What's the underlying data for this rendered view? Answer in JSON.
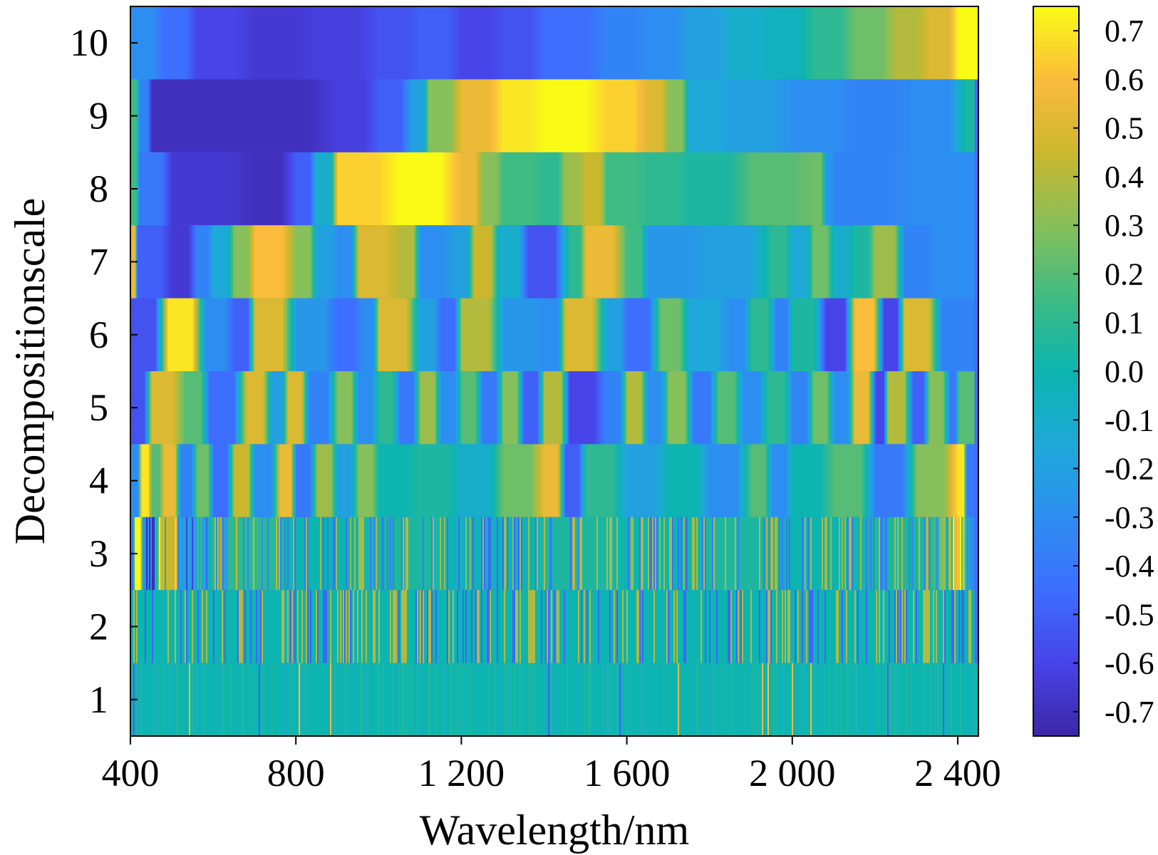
{
  "chart_data": {
    "type": "heatmap",
    "title": "",
    "xlabel": "Wavelength/nm",
    "ylabel": "Decompositionscale",
    "xlim": [
      400,
      2450
    ],
    "x_ticks": [
      400,
      800,
      1200,
      1600,
      2000,
      2400
    ],
    "x_tick_labels": [
      "400",
      "800",
      "1 200",
      "1 600",
      "2 000",
      "2 400"
    ],
    "y_ticks": [
      1,
      2,
      3,
      4,
      5,
      6,
      7,
      8,
      9,
      10
    ],
    "y_tick_labels": [
      "1",
      "2",
      "3",
      "4",
      "5",
      "6",
      "7",
      "8",
      "9",
      "10"
    ],
    "colorbar": {
      "range": [
        -0.75,
        0.75
      ],
      "colormap": "parula",
      "ticks": [
        0.7,
        0.6,
        0.5,
        0.4,
        0.3,
        0.2,
        0.1,
        0.0,
        -0.1,
        -0.2,
        -0.3,
        -0.4,
        -0.5,
        -0.6,
        -0.7
      ],
      "tick_labels": [
        "0.7",
        "0.6",
        "0.5",
        "0.4",
        "0.3",
        "0.2",
        "0.1",
        "0.0",
        "-0.1",
        "-0.2",
        "-0.3",
        "-0.4",
        "-0.5",
        "-0.6",
        "-0.7"
      ]
    },
    "rows": [
      {
        "scale": 10,
        "x_start": 400,
        "x_end": 2450,
        "segments": [
          [
            400,
            -0.3
          ],
          [
            480,
            -0.45
          ],
          [
            560,
            -0.6
          ],
          [
            700,
            -0.65
          ],
          [
            850,
            -0.62
          ],
          [
            1000,
            -0.55
          ],
          [
            1100,
            -0.5
          ],
          [
            1200,
            -0.6
          ],
          [
            1300,
            -0.55
          ],
          [
            1400,
            -0.45
          ],
          [
            1550,
            -0.35
          ],
          [
            1650,
            -0.3
          ],
          [
            1750,
            -0.2
          ],
          [
            1850,
            -0.1
          ],
          [
            1950,
            -0.05
          ],
          [
            2050,
            0.1
          ],
          [
            2150,
            0.25
          ],
          [
            2250,
            0.4
          ],
          [
            2330,
            0.5
          ],
          [
            2400,
            0.75
          ]
        ]
      },
      {
        "scale": 9,
        "x_start": 400,
        "x_end": 2440,
        "segments": [
          [
            400,
            0.15
          ],
          [
            420,
            -0.35
          ],
          [
            450,
            -0.7
          ],
          [
            700,
            -0.7
          ],
          [
            900,
            -0.62
          ],
          [
            1000,
            -0.5
          ],
          [
            1080,
            -0.2
          ],
          [
            1120,
            0.3
          ],
          [
            1200,
            0.55
          ],
          [
            1300,
            0.7
          ],
          [
            1400,
            0.75
          ],
          [
            1550,
            0.65
          ],
          [
            1650,
            0.5
          ],
          [
            1700,
            0.3
          ],
          [
            1750,
            -0.15
          ],
          [
            1850,
            -0.2
          ],
          [
            2000,
            -0.3
          ],
          [
            2150,
            -0.35
          ],
          [
            2300,
            -0.3
          ],
          [
            2420,
            0.05
          ]
        ]
      },
      {
        "scale": 8,
        "x_start": 400,
        "x_end": 2440,
        "segments": [
          [
            400,
            0.15
          ],
          [
            420,
            -0.4
          ],
          [
            500,
            -0.65
          ],
          [
            700,
            -0.7
          ],
          [
            800,
            -0.5
          ],
          [
            850,
            -0.1
          ],
          [
            900,
            0.65
          ],
          [
            1050,
            0.75
          ],
          [
            1200,
            0.55
          ],
          [
            1250,
            0.3
          ],
          [
            1300,
            0.15
          ],
          [
            1400,
            0.1
          ],
          [
            1450,
            0.35
          ],
          [
            1500,
            0.45
          ],
          [
            1550,
            0.15
          ],
          [
            1650,
            0.1
          ],
          [
            1750,
            0.05
          ],
          [
            1900,
            0.2
          ],
          [
            2050,
            0.25
          ],
          [
            2080,
            -0.25
          ],
          [
            2100,
            -0.35
          ],
          [
            2300,
            -0.3
          ]
        ]
      },
      {
        "scale": 7,
        "x_start": 400,
        "x_end": 2440,
        "segments": [
          [
            400,
            0.55
          ],
          [
            415,
            -0.5
          ],
          [
            500,
            -0.65
          ],
          [
            560,
            -0.35
          ],
          [
            600,
            -0.15
          ],
          [
            650,
            0.3
          ],
          [
            700,
            0.6
          ],
          [
            800,
            0.3
          ],
          [
            850,
            -0.2
          ],
          [
            900,
            -0.3
          ],
          [
            950,
            0.5
          ],
          [
            1050,
            0.4
          ],
          [
            1100,
            -0.3
          ],
          [
            1180,
            -0.2
          ],
          [
            1230,
            0.45
          ],
          [
            1290,
            -0.1
          ],
          [
            1360,
            -0.55
          ],
          [
            1460,
            0.1
          ],
          [
            1500,
            0.55
          ],
          [
            1600,
            0.15
          ],
          [
            1650,
            -0.25
          ],
          [
            1800,
            -0.2
          ],
          [
            1950,
            0.1
          ],
          [
            2000,
            -0.15
          ],
          [
            2050,
            0.25
          ],
          [
            2100,
            -0.1
          ],
          [
            2150,
            0.05
          ],
          [
            2200,
            0.35
          ],
          [
            2270,
            -0.35
          ],
          [
            2350,
            -0.3
          ]
        ]
      },
      {
        "scale": 6,
        "x_start": 400,
        "x_end": 2440,
        "segments": [
          [
            400,
            -0.55
          ],
          [
            490,
            0.7
          ],
          [
            580,
            -0.3
          ],
          [
            650,
            -0.5
          ],
          [
            700,
            0.5
          ],
          [
            800,
            -0.25
          ],
          [
            900,
            -0.45
          ],
          [
            960,
            -0.3
          ],
          [
            1000,
            0.5
          ],
          [
            1100,
            -0.2
          ],
          [
            1150,
            -0.45
          ],
          [
            1200,
            0.4
          ],
          [
            1300,
            -0.25
          ],
          [
            1400,
            -0.3
          ],
          [
            1450,
            0.5
          ],
          [
            1550,
            -0.2
          ],
          [
            1600,
            -0.45
          ],
          [
            1680,
            0.25
          ],
          [
            1750,
            -0.15
          ],
          [
            1850,
            -0.3
          ],
          [
            1900,
            0.1
          ],
          [
            1960,
            -0.35
          ],
          [
            2000,
            0.05
          ],
          [
            2080,
            -0.6
          ],
          [
            2150,
            0.6
          ],
          [
            2220,
            -0.6
          ],
          [
            2270,
            0.5
          ],
          [
            2360,
            -0.35
          ]
        ]
      },
      {
        "scale": 5,
        "x_start": 400,
        "x_end": 2440,
        "segments": [
          [
            400,
            -0.55
          ],
          [
            450,
            0.5
          ],
          [
            530,
            0.2
          ],
          [
            590,
            -0.45
          ],
          [
            680,
            0.5
          ],
          [
            740,
            -0.2
          ],
          [
            780,
            0.5
          ],
          [
            830,
            -0.35
          ],
          [
            900,
            0.3
          ],
          [
            950,
            -0.3
          ],
          [
            1000,
            0.1
          ],
          [
            1050,
            -0.4
          ],
          [
            1100,
            0.35
          ],
          [
            1150,
            -0.3
          ],
          [
            1200,
            0.2
          ],
          [
            1250,
            -0.4
          ],
          [
            1300,
            0.3
          ],
          [
            1350,
            -0.5
          ],
          [
            1400,
            0.4
          ],
          [
            1460,
            -0.6
          ],
          [
            1550,
            -0.35
          ],
          [
            1600,
            0.4
          ],
          [
            1650,
            -0.3
          ],
          [
            1700,
            0.3
          ],
          [
            1760,
            -0.4
          ],
          [
            1820,
            0.2
          ],
          [
            1880,
            -0.3
          ],
          [
            1940,
            0.1
          ],
          [
            2000,
            -0.35
          ],
          [
            2050,
            0.25
          ],
          [
            2100,
            -0.3
          ],
          [
            2150,
            0.55
          ],
          [
            2200,
            -0.6
          ],
          [
            2230,
            0.4
          ],
          [
            2290,
            -0.5
          ],
          [
            2330,
            0.3
          ],
          [
            2380,
            -0.4
          ],
          [
            2400,
            0.2
          ]
        ]
      },
      {
        "scale": 4,
        "x_start": 400,
        "x_end": 2440,
        "segments": [
          [
            400,
            -0.3
          ],
          [
            425,
            0.7
          ],
          [
            450,
            0.2
          ],
          [
            480,
            0.55
          ],
          [
            520,
            -0.35
          ],
          [
            560,
            0.25
          ],
          [
            600,
            -0.45
          ],
          [
            650,
            0.45
          ],
          [
            700,
            -0.3
          ],
          [
            760,
            0.55
          ],
          [
            800,
            -0.4
          ],
          [
            850,
            0.35
          ],
          [
            900,
            -0.2
          ],
          [
            950,
            0.3
          ],
          [
            1000,
            0.0
          ],
          [
            1100,
            0.05
          ],
          [
            1200,
            -0.1
          ],
          [
            1300,
            0.25
          ],
          [
            1400,
            0.55
          ],
          [
            1450,
            -0.5
          ],
          [
            1500,
            0.1
          ],
          [
            1600,
            -0.2
          ],
          [
            1700,
            0.0
          ],
          [
            1800,
            -0.3
          ],
          [
            1900,
            0.2
          ],
          [
            1950,
            -0.3
          ],
          [
            2000,
            0.0
          ],
          [
            2100,
            0.2
          ],
          [
            2200,
            -0.4
          ],
          [
            2300,
            0.3
          ],
          [
            2400,
            0.7
          ],
          [
            2420,
            -0.4
          ]
        ]
      },
      {
        "scale": 3,
        "x_start": 400,
        "x_end": 2440,
        "segments": [
          [
            400,
            0.0
          ],
          [
            410,
            0.75
          ],
          [
            430,
            -0.3
          ],
          [
            470,
            0.45
          ],
          [
            520,
            -0.2
          ],
          [
            600,
            0.1
          ],
          [
            800,
            0.0
          ],
          [
            1000,
            0.05
          ],
          [
            1200,
            -0.05
          ],
          [
            1400,
            0.05
          ],
          [
            1600,
            0.0
          ],
          [
            1800,
            0.05
          ],
          [
            2000,
            0.0
          ],
          [
            2200,
            0.05
          ],
          [
            2400,
            0.6
          ],
          [
            2420,
            -0.3
          ]
        ]
      },
      {
        "scale": 2,
        "x_start": 400,
        "x_end": 2440,
        "segments": [
          [
            400,
            0.0
          ],
          [
            2440,
            0.0
          ]
        ]
      },
      {
        "scale": 1,
        "x_start": 400,
        "x_end": 2450,
        "segments": [
          [
            400,
            0.0
          ],
          [
            2450,
            0.0
          ]
        ]
      }
    ]
  }
}
